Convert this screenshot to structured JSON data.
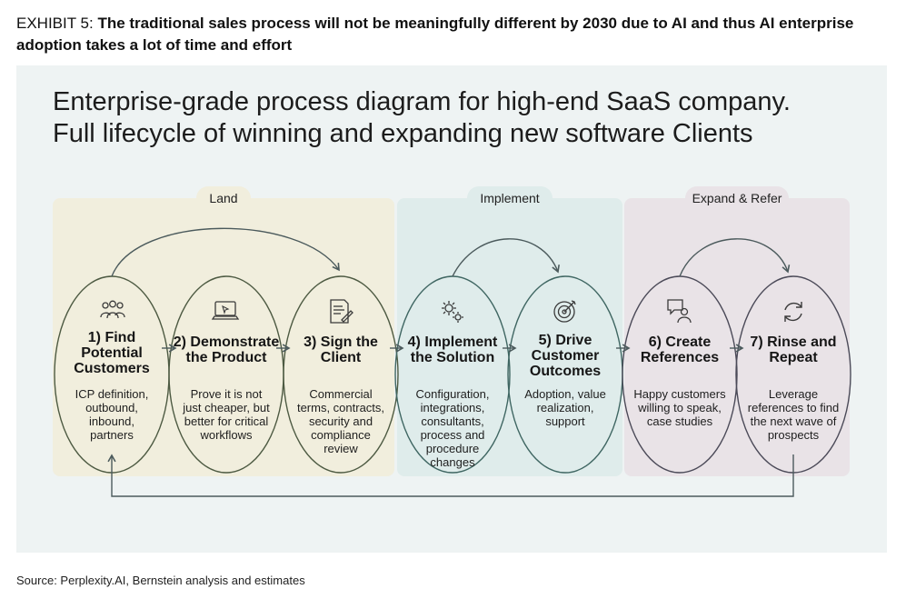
{
  "exhibit": {
    "label": "EXHIBIT 5:",
    "title": "The traditional sales process will not be meaningfully different by 2030 due to AI and thus AI enterprise adoption takes a lot of time and effort"
  },
  "diagram": {
    "title_line1": "Enterprise-grade process diagram for high-end SaaS company.",
    "title_line2": "Full lifecycle of winning and expanding new software Clients",
    "phases": [
      {
        "label": "Land",
        "color": "#f1eedd"
      },
      {
        "label": "Implement",
        "color": "#dfeceb"
      },
      {
        "label": "Expand & Refer",
        "color": "#e9e3e7"
      }
    ],
    "steps": [
      {
        "title": "1) Find Potential Customers",
        "desc": "ICP definition, outbound, inbound, partners",
        "icon": "people-group-icon"
      },
      {
        "title": "2) Demonstrate the Product",
        "desc": "Prove it is not just cheaper, but better for critical workflows",
        "icon": "laptop-icon"
      },
      {
        "title": "3) Sign the Client",
        "desc": "Commercial terms, contracts, security and compliance review",
        "icon": "document-sign-icon"
      },
      {
        "title": "4) Implement the Solution",
        "desc": "Configuration, integrations, consultants, process and procedure changes",
        "icon": "gears-icon"
      },
      {
        "title": "5) Drive Customer Outcomes",
        "desc": "Adoption, value realization, support",
        "icon": "target-icon"
      },
      {
        "title": "6) Create References",
        "desc": "Happy customers willing to speak, case studies",
        "icon": "speech-person-icon"
      },
      {
        "title": "7) Rinse and Repeat",
        "desc": "Leverage references to find the next wave of prospects",
        "icon": "refresh-icon"
      }
    ],
    "colors": {
      "land_stroke": "#4d5a42",
      "implement_stroke": "#3f6662",
      "expand_stroke": "#4b4a58",
      "arrow": "#4b5a5c"
    }
  },
  "source": "Source: Perplexity.AI, Bernstein analysis and estimates"
}
